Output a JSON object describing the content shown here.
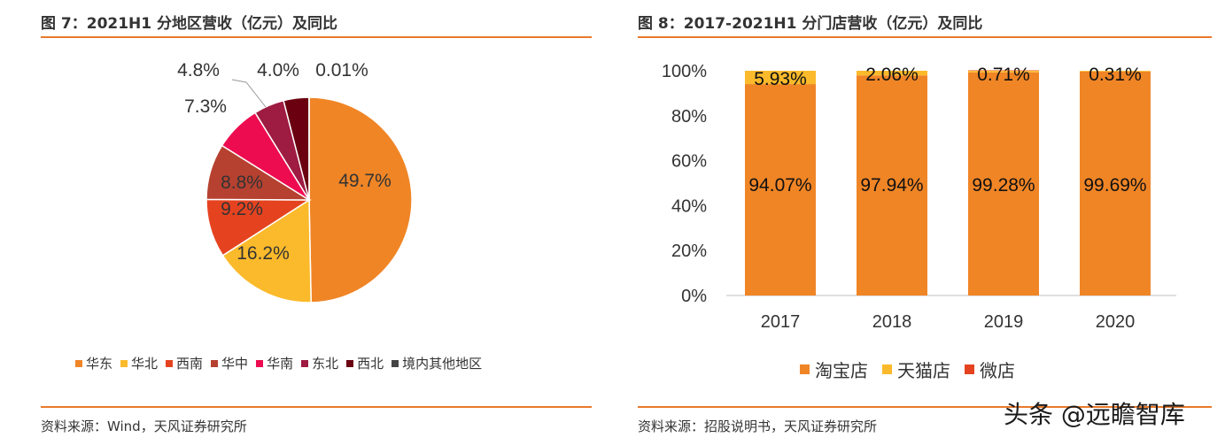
{
  "left": {
    "title": "图 7：2021H1 分地区营收（亿元）及同比",
    "source": "资料来源：Wind，天风证券研究所"
  },
  "right": {
    "title": "图 8：2017-2021H1 分门店营收（亿元）及同比",
    "source": "资料来源：招股说明书，天风证券研究所"
  },
  "watermark": "头条 @远瞻智库",
  "chart_data": [
    {
      "type": "pie",
      "title": "图 7：2021H1 分地区营收（亿元）及同比",
      "start_angle_deg": 0,
      "direction": "clockwise",
      "slices": [
        {
          "name": "华东",
          "value": 49.7,
          "label": "49.7%",
          "color": "#F08526"
        },
        {
          "name": "华北",
          "value": 16.2,
          "label": "16.2%",
          "color": "#FBBA2B"
        },
        {
          "name": "西南",
          "value": 9.2,
          "label": "9.2%",
          "color": "#E54320"
        },
        {
          "name": "华中",
          "value": 8.8,
          "label": "8.8%",
          "color": "#B64130"
        },
        {
          "name": "华南",
          "value": 7.3,
          "label": "7.3%",
          "color": "#EE0C50"
        },
        {
          "name": "东北",
          "value": 4.8,
          "label": "4.8%",
          "color": "#9E1B41"
        },
        {
          "name": "西北",
          "value": 4.0,
          "label": "4.0%",
          "color": "#6B0010"
        },
        {
          "name": "境内其他地区",
          "value": 0.01,
          "label": "0.01%",
          "color": "#444444"
        }
      ],
      "legend": [
        "华东",
        "华北",
        "西南",
        "华中",
        "华南",
        "东北",
        "西北",
        "境内其他地区"
      ],
      "legend_position": "bottom"
    },
    {
      "type": "bar",
      "stacked": true,
      "title": "图 8：2017-2021H1 分门店营收（亿元）及同比",
      "categories": [
        "2017",
        "2018",
        "2019",
        "2020"
      ],
      "series": [
        {
          "name": "淘宝店",
          "values": [
            94.07,
            97.94,
            99.28,
            99.69
          ],
          "labels": [
            "94.07%",
            "97.94%",
            "99.28%",
            "99.69%"
          ],
          "color": "#F08526"
        },
        {
          "name": "天猫店",
          "values": [
            5.93,
            2.06,
            0.71,
            0.31
          ],
          "labels": [
            "5.93%",
            "2.06%",
            "0.71%",
            "0.31%"
          ],
          "color": "#FBBA2B"
        },
        {
          "name": "微店",
          "values": [
            0,
            0,
            0.01,
            0
          ],
          "color": "#E54320"
        }
      ],
      "ylim": [
        0,
        100
      ],
      "yticks": [
        "0%",
        "20%",
        "40%",
        "60%",
        "80%",
        "100%"
      ],
      "grid": false,
      "legend_position": "bottom"
    }
  ]
}
